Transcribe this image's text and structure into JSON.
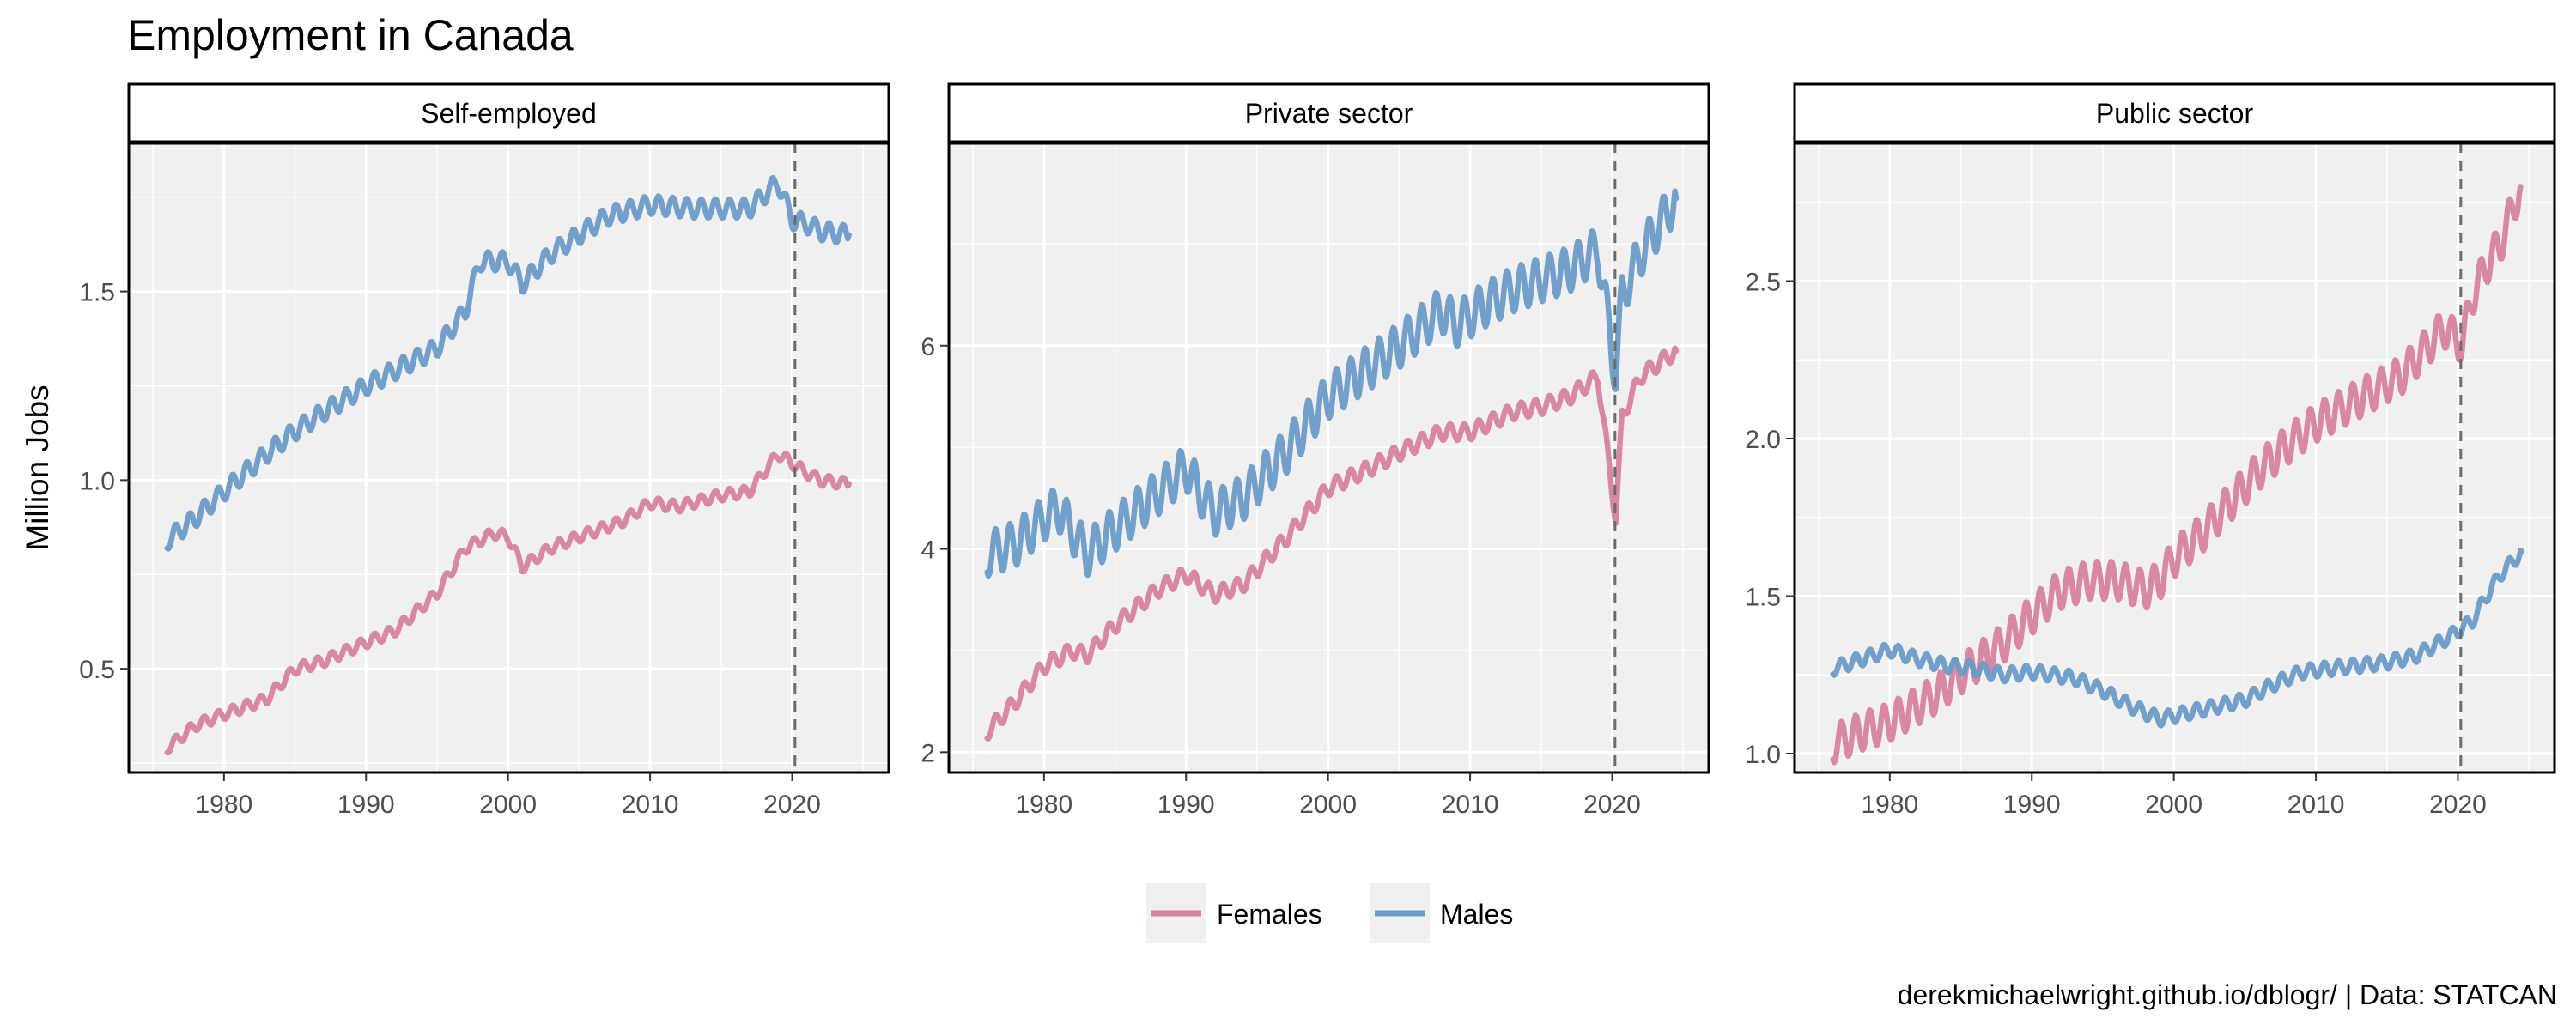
{
  "chart_data": {
    "type": "line",
    "title": "Employment in Canada",
    "ylabel": "Million Jobs",
    "caption": "derekmichaelwright.github.io/dblogr/ | Data: STATCAN",
    "legend": {
      "position": "bottom",
      "entries": [
        "Females",
        "Males"
      ]
    },
    "colors": {
      "Females": "#d6829f",
      "Males": "#6a9bc8"
    },
    "grid": true,
    "xlim": [
      1973.3,
      2026.8
    ],
    "xticks": [
      1980,
      1990,
      2000,
      2010,
      2020
    ],
    "marker_x": 2020.2,
    "panels": [
      {
        "label": "Self-employed",
        "ylim": [
          0.225,
          1.895
        ],
        "yticks": [
          0.5,
          1.0,
          1.5
        ],
        "ytick_labels": [
          "0.5",
          "1.0",
          "1.5"
        ],
        "seasonal_amp": {
          "Females": 0.015,
          "Males": 0.025
        },
        "series": [
          {
            "name": "Females",
            "points": [
              [
                1976,
                0.29
              ],
              [
                1978,
                0.35
              ],
              [
                1980,
                0.38
              ],
              [
                1983,
                0.42
              ],
              [
                1985,
                0.5
              ],
              [
                1987,
                0.52
              ],
              [
                1990,
                0.57
              ],
              [
                1992,
                0.6
              ],
              [
                1995,
                0.7
              ],
              [
                1997,
                0.82
              ],
              [
                1999,
                0.86
              ],
              [
                2000,
                0.85
              ],
              [
                2001,
                0.77
              ],
              [
                2003,
                0.82
              ],
              [
                2005,
                0.85
              ],
              [
                2008,
                0.89
              ],
              [
                2010,
                0.94
              ],
              [
                2012,
                0.93
              ],
              [
                2015,
                0.96
              ],
              [
                2017,
                0.97
              ],
              [
                2019,
                1.07
              ],
              [
                2021,
                1.02
              ],
              [
                2022,
                1.0
              ],
              [
                2024,
                0.99
              ]
            ]
          },
          {
            "name": "Males",
            "points": [
              [
                1976,
                0.84
              ],
              [
                1978,
                0.9
              ],
              [
                1980,
                0.97
              ],
              [
                1983,
                1.07
              ],
              [
                1985,
                1.13
              ],
              [
                1987,
                1.18
              ],
              [
                1990,
                1.25
              ],
              [
                1992,
                1.29
              ],
              [
                1995,
                1.35
              ],
              [
                1997,
                1.45
              ],
              [
                1998,
                1.58
              ],
              [
                2000,
                1.58
              ],
              [
                2001,
                1.52
              ],
              [
                2003,
                1.6
              ],
              [
                2005,
                1.65
              ],
              [
                2007,
                1.7
              ],
              [
                2010,
                1.73
              ],
              [
                2013,
                1.72
              ],
              [
                2015,
                1.72
              ],
              [
                2017,
                1.72
              ],
              [
                2019,
                1.79
              ],
              [
                2020,
                1.69
              ],
              [
                2021,
                1.68
              ],
              [
                2022,
                1.66
              ],
              [
                2024,
                1.65
              ]
            ]
          }
        ]
      },
      {
        "label": "Private sector",
        "ylim": [
          1.8,
          8.0
        ],
        "yticks": [
          2,
          4,
          6
        ],
        "ytick_labels": [
          "2",
          "4",
          "6"
        ],
        "seasonal_amp": {
          "Females": 0.08,
          "Males": 0.22
        },
        "series": [
          {
            "name": "Females",
            "points": [
              [
                1976,
                2.2
              ],
              [
                1978,
                2.5
              ],
              [
                1980,
                2.85
              ],
              [
                1982,
                3.0
              ],
              [
                1983,
                2.95
              ],
              [
                1985,
                3.25
              ],
              [
                1988,
                3.6
              ],
              [
                1990,
                3.75
              ],
              [
                1992,
                3.55
              ],
              [
                1994,
                3.65
              ],
              [
                1997,
                4.1
              ],
              [
                2000,
                4.6
              ],
              [
                2003,
                4.8
              ],
              [
                2005,
                4.95
              ],
              [
                2008,
                5.15
              ],
              [
                2010,
                5.15
              ],
              [
                2013,
                5.35
              ],
              [
                2015,
                5.4
              ],
              [
                2017,
                5.5
              ],
              [
                2019,
                5.7
              ],
              [
                2020.25,
                4.3
              ],
              [
                2020.7,
                5.3
              ],
              [
                2022,
                5.7
              ],
              [
                2024.5,
                5.95
              ]
            ]
          },
          {
            "name": "Males",
            "points": [
              [
                1976,
                3.95
              ],
              [
                1978,
                4.05
              ],
              [
                1980,
                4.3
              ],
              [
                1981,
                4.4
              ],
              [
                1983,
                3.95
              ],
              [
                1985,
                4.2
              ],
              [
                1988,
                4.55
              ],
              [
                1990,
                4.8
              ],
              [
                1991,
                4.55
              ],
              [
                1992,
                4.35
              ],
              [
                1994,
                4.5
              ],
              [
                1997,
                4.95
              ],
              [
                2000,
                5.5
              ],
              [
                2003,
                5.8
              ],
              [
                2005,
                6.0
              ],
              [
                2008,
                6.35
              ],
              [
                2009,
                6.2
              ],
              [
                2011,
                6.4
              ],
              [
                2013,
                6.55
              ],
              [
                2015,
                6.65
              ],
              [
                2017,
                6.75
              ],
              [
                2019,
                6.95
              ],
              [
                2020.25,
                5.7
              ],
              [
                2020.7,
                6.5
              ],
              [
                2022,
                6.9
              ],
              [
                2024.5,
                7.45
              ]
            ]
          }
        ]
      },
      {
        "label": "Public sector",
        "ylim": [
          0.94,
          2.94
        ],
        "yticks": [
          1.0,
          1.5,
          2.0,
          2.5
        ],
        "ytick_labels": [
          "1.0",
          "1.5",
          "2.0",
          "2.5"
        ],
        "seasonal_amp": {
          "Females": 0.06,
          "Males": 0.022
        },
        "series": [
          {
            "name": "Females",
            "points": [
              [
                1976,
                1.03
              ],
              [
                1978,
                1.07
              ],
              [
                1980,
                1.1
              ],
              [
                1983,
                1.18
              ],
              [
                1985,
                1.25
              ],
              [
                1988,
                1.35
              ],
              [
                1990,
                1.44
              ],
              [
                1992,
                1.52
              ],
              [
                1994,
                1.55
              ],
              [
                1996,
                1.55
              ],
              [
                1998,
                1.52
              ],
              [
                1999,
                1.55
              ],
              [
                2000,
                1.62
              ],
              [
                2002,
                1.7
              ],
              [
                2004,
                1.8
              ],
              [
                2006,
                1.9
              ],
              [
                2008,
                1.98
              ],
              [
                2010,
                2.05
              ],
              [
                2012,
                2.1
              ],
              [
                2014,
                2.15
              ],
              [
                2016,
                2.2
              ],
              [
                2018,
                2.3
              ],
              [
                2019,
                2.35
              ],
              [
                2020.3,
                2.3
              ],
              [
                2021,
                2.45
              ],
              [
                2022,
                2.55
              ],
              [
                2023,
                2.62
              ],
              [
                2024.4,
                2.8
              ]
            ]
          },
          {
            "name": "Males",
            "points": [
              [
                1976,
                1.27
              ],
              [
                1978,
                1.3
              ],
              [
                1980,
                1.33
              ],
              [
                1982,
                1.3
              ],
              [
                1984,
                1.28
              ],
              [
                1986,
                1.27
              ],
              [
                1988,
                1.25
              ],
              [
                1990,
                1.26
              ],
              [
                1993,
                1.24
              ],
              [
                1995,
                1.2
              ],
              [
                1997,
                1.15
              ],
              [
                1999,
                1.11
              ],
              [
                2001,
                1.13
              ],
              [
                2003,
                1.15
              ],
              [
                2005,
                1.17
              ],
              [
                2007,
                1.22
              ],
              [
                2009,
                1.26
              ],
              [
                2011,
                1.27
              ],
              [
                2013,
                1.28
              ],
              [
                2015,
                1.29
              ],
              [
                2017,
                1.31
              ],
              [
                2019,
                1.36
              ],
              [
                2021,
                1.42
              ],
              [
                2022,
                1.5
              ],
              [
                2023,
                1.57
              ],
              [
                2024.5,
                1.64
              ]
            ]
          }
        ]
      }
    ]
  }
}
